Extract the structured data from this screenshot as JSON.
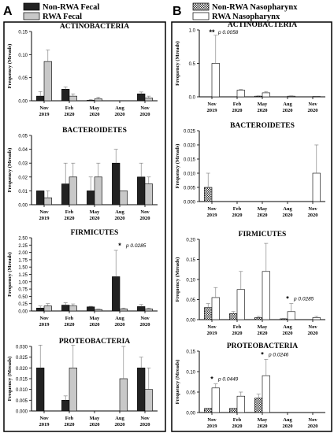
{
  "panel_a": {
    "letter": "A",
    "legend": [
      {
        "label": "Non-RWA Fecal",
        "fill": "#222222",
        "pattern": "solid"
      },
      {
        "label": "RWA Fecal",
        "fill": "#c8c8c8",
        "pattern": "solid"
      }
    ]
  },
  "panel_b": {
    "letter": "B",
    "legend": [
      {
        "label": "Non-RWA Nasopharynx",
        "fill": "#555555",
        "pattern": "checker"
      },
      {
        "label": "RWA Nasopharynx",
        "fill": "#ffffff",
        "pattern": "solid"
      }
    ]
  },
  "colors": {
    "non_rwa_fecal": "#222222",
    "rwa_fecal": "#c8c8c8",
    "non_rwa_naso": "#555555",
    "rwa_naso": "#ffffff"
  },
  "chart_data": [
    {
      "type": "bar",
      "panel": "A",
      "title": "ACTINOBACTERIA",
      "ylabel": "Frequency (Mreads)",
      "ylim": [
        0,
        0.15
      ],
      "yticks": [
        "0.00",
        "0.05",
        "0.10",
        "0.15"
      ],
      "categories": [
        [
          "Nov",
          "2019"
        ],
        [
          "Feb",
          "2020"
        ],
        [
          "May",
          "2020"
        ],
        [
          "Aug",
          "2020"
        ],
        [
          "Nov",
          "2020"
        ]
      ],
      "series": [
        {
          "name": "Non-RWA Fecal",
          "values": [
            0.01,
            0.025,
            0.001,
            0,
            0.015
          ],
          "errors": [
            0.01,
            0.005,
            0.002,
            0,
            0.004
          ]
        },
        {
          "name": "RWA Fecal",
          "values": [
            0.085,
            0.01,
            0.004,
            0,
            0.006
          ],
          "errors": [
            0.025,
            0.005,
            0.004,
            0,
            0.004
          ]
        }
      ],
      "annotations": []
    },
    {
      "type": "bar",
      "panel": "A",
      "title": "BACTEROIDETES",
      "ylabel": "Frequency (Mreads)",
      "ylim": [
        0,
        0.05
      ],
      "yticks": [
        "0.00",
        "0.01",
        "0.02",
        "0.03",
        "0.04",
        "0.05"
      ],
      "categories": [
        [
          "Nov",
          "2019"
        ],
        [
          "Feb",
          "2020"
        ],
        [
          "May",
          "2020"
        ],
        [
          "Aug",
          "2020"
        ],
        [
          "Nov",
          "2020"
        ]
      ],
      "series": [
        {
          "name": "Non-RWA Fecal",
          "values": [
            0.01,
            0.015,
            0.01,
            0.03,
            0.02
          ],
          "errors": [
            0,
            0.015,
            0.01,
            0.01,
            0.01
          ]
        },
        {
          "name": "RWA Fecal",
          "values": [
            0.005,
            0.02,
            0.02,
            0.01,
            0.015
          ],
          "errors": [
            0.005,
            0.01,
            0.01,
            0,
            0.005
          ]
        }
      ],
      "annotations": []
    },
    {
      "type": "bar",
      "panel": "A",
      "title": "FIRMICUTES",
      "ylabel": "Frequency (Mreads)",
      "ylim": [
        0,
        2.5
      ],
      "yticks": [
        "0.00",
        "0.25",
        "0.50",
        "0.75",
        "1.00",
        "1.25",
        "1.50",
        "1.75",
        "2.00",
        "2.25",
        "2.50"
      ],
      "categories": [
        [
          "Nov",
          "2019"
        ],
        [
          "Feb",
          "2020"
        ],
        [
          "May",
          "2020"
        ],
        [
          "Aug",
          "2020"
        ],
        [
          "Nov",
          "2020"
        ]
      ],
      "series": [
        {
          "name": "Non-RWA Fecal",
          "values": [
            0.1,
            0.2,
            0.14,
            1.17,
            0.15
          ],
          "errors": [
            0.07,
            0.08,
            0.02,
            0.9,
            0.07
          ]
        },
        {
          "name": "RWA Fecal",
          "values": [
            0.17,
            0.17,
            0.05,
            0.07,
            0.07
          ],
          "errors": [
            0.08,
            0.07,
            0.02,
            0.03,
            0.03
          ]
        }
      ],
      "annotations": [
        {
          "category": 3,
          "text": "p 0.0285",
          "star": "*"
        }
      ]
    },
    {
      "type": "bar",
      "panel": "A",
      "title": "PROTEOBACTERIA",
      "ylabel": "Frequency (Mreads)",
      "ylim": [
        0,
        0.03
      ],
      "yticks": [
        "0.000",
        "0.005",
        "0.010",
        "0.015",
        "0.020",
        "0.025",
        "0.030"
      ],
      "categories": [
        [
          "Nov",
          "2019"
        ],
        [
          "Feb",
          "2020"
        ],
        [
          "May",
          "2020"
        ],
        [
          "Aug",
          "2020"
        ],
        [
          "Nov",
          "2020"
        ]
      ],
      "series": [
        {
          "name": "Non-RWA Fecal",
          "values": [
            0.02,
            0.005,
            0,
            0,
            0.02
          ],
          "errors": [
            0.02,
            0.002,
            0,
            0,
            0.005
          ]
        },
        {
          "name": "RWA Fecal",
          "values": [
            0,
            0.02,
            0,
            0.015,
            0.01
          ],
          "errors": [
            0,
            0.02,
            0,
            0.015,
            0.01
          ]
        }
      ],
      "annotations": []
    },
    {
      "type": "bar",
      "panel": "B",
      "title": "ACTINOBACTERIA",
      "ylabel": "Frequency (Mreads)",
      "ylim": [
        0,
        1.0
      ],
      "yticks": [
        "0.0",
        "0.5",
        "1.0"
      ],
      "categories": [
        [
          "Nov",
          "2019"
        ],
        [
          "Feb",
          "2020"
        ],
        [
          "May",
          "2020"
        ],
        [
          "Aug",
          "2020"
        ],
        [
          "Nov",
          "2020"
        ]
      ],
      "series": [
        {
          "name": "Non-RWA Nasopharynx",
          "values": [
            0,
            0,
            0.01,
            0,
            0
          ],
          "errors": [
            0,
            0,
            0.005,
            0,
            0
          ]
        },
        {
          "name": "RWA Nasopharynx",
          "values": [
            0.5,
            0.1,
            0.06,
            0.01,
            0.005
          ],
          "errors": [
            0.42,
            0.01,
            0.02,
            0.005,
            0.003
          ]
        }
      ],
      "annotations": [
        {
          "category": 0,
          "text": "p 0.0058",
          "star": "**"
        }
      ]
    },
    {
      "type": "bar",
      "panel": "B",
      "title": "BACTEROIDETES",
      "ylabel": "Frequency (Mreads)",
      "ylim": [
        0,
        0.025
      ],
      "yticks": [
        "0.000",
        "0.005",
        "0.010",
        "0.015",
        "0.020",
        "0.025"
      ],
      "categories": [
        [
          "Nov",
          "2019"
        ],
        [
          "Feb",
          "2020"
        ],
        [
          "May",
          "2020"
        ],
        [
          "Aug",
          "2020"
        ],
        [
          "Nov",
          "2020"
        ]
      ],
      "series": [
        {
          "name": "Non-RWA Nasopharynx",
          "values": [
            0.005,
            0,
            0,
            0,
            0
          ],
          "errors": [
            0.005,
            0,
            0,
            0,
            0
          ]
        },
        {
          "name": "RWA Nasopharynx",
          "values": [
            0,
            0,
            0,
            0,
            0.01
          ],
          "errors": [
            0,
            0,
            0,
            0,
            0.01
          ]
        }
      ],
      "annotations": []
    },
    {
      "type": "bar",
      "panel": "B",
      "title": "FIRMICUTES",
      "ylabel": "Frequency (Mreads)",
      "ylim": [
        0,
        0.2
      ],
      "yticks": [
        "0.00",
        "0.05",
        "0.10",
        "0.15",
        "0.20"
      ],
      "categories": [
        [
          "Nov",
          "2019"
        ],
        [
          "Feb",
          "2020"
        ],
        [
          "May",
          "2020"
        ],
        [
          "Aug",
          "2020"
        ],
        [
          "Nov",
          "2020"
        ]
      ],
      "series": [
        {
          "name": "Non-RWA Nasopharynx",
          "values": [
            0.03,
            0.015,
            0.005,
            0.002,
            0
          ],
          "errors": [
            0.01,
            0.005,
            0.003,
            0.001,
            0
          ]
        },
        {
          "name": "RWA Nasopharynx",
          "values": [
            0.055,
            0.075,
            0.12,
            0.02,
            0.005
          ],
          "errors": [
            0.025,
            0.045,
            0.07,
            0.02,
            0.003
          ]
        }
      ],
      "annotations": [
        {
          "category": 3,
          "text": "p 0.0285",
          "star": "*"
        }
      ]
    },
    {
      "type": "bar",
      "panel": "B",
      "title": "PROTEOBACTERIA",
      "ylabel": "Frequency (Mreads)",
      "ylim": [
        0,
        0.15
      ],
      "yticks": [
        "0.00",
        "0.05",
        "0.10",
        "0.15"
      ],
      "categories": [
        [
          "Nov",
          "2019"
        ],
        [
          "Feb",
          "2020"
        ],
        [
          "May",
          "2020"
        ],
        [
          "Aug",
          "2020"
        ],
        [
          "Nov",
          "2020"
        ]
      ],
      "series": [
        {
          "name": "Non-RWA Nasopharynx",
          "values": [
            0.01,
            0.01,
            0.035,
            0,
            0
          ],
          "errors": [
            0,
            0,
            0.01,
            0,
            0
          ]
        },
        {
          "name": "RWA Nasopharynx",
          "values": [
            0.06,
            0.04,
            0.09,
            0,
            0
          ],
          "errors": [
            0.01,
            0.01,
            0.04,
            0,
            0
          ]
        }
      ],
      "annotations": [
        {
          "category": 0,
          "text": "p 0.0449",
          "star": "*"
        },
        {
          "category": 2,
          "text": "p 0.0246",
          "star": "*"
        }
      ]
    }
  ]
}
